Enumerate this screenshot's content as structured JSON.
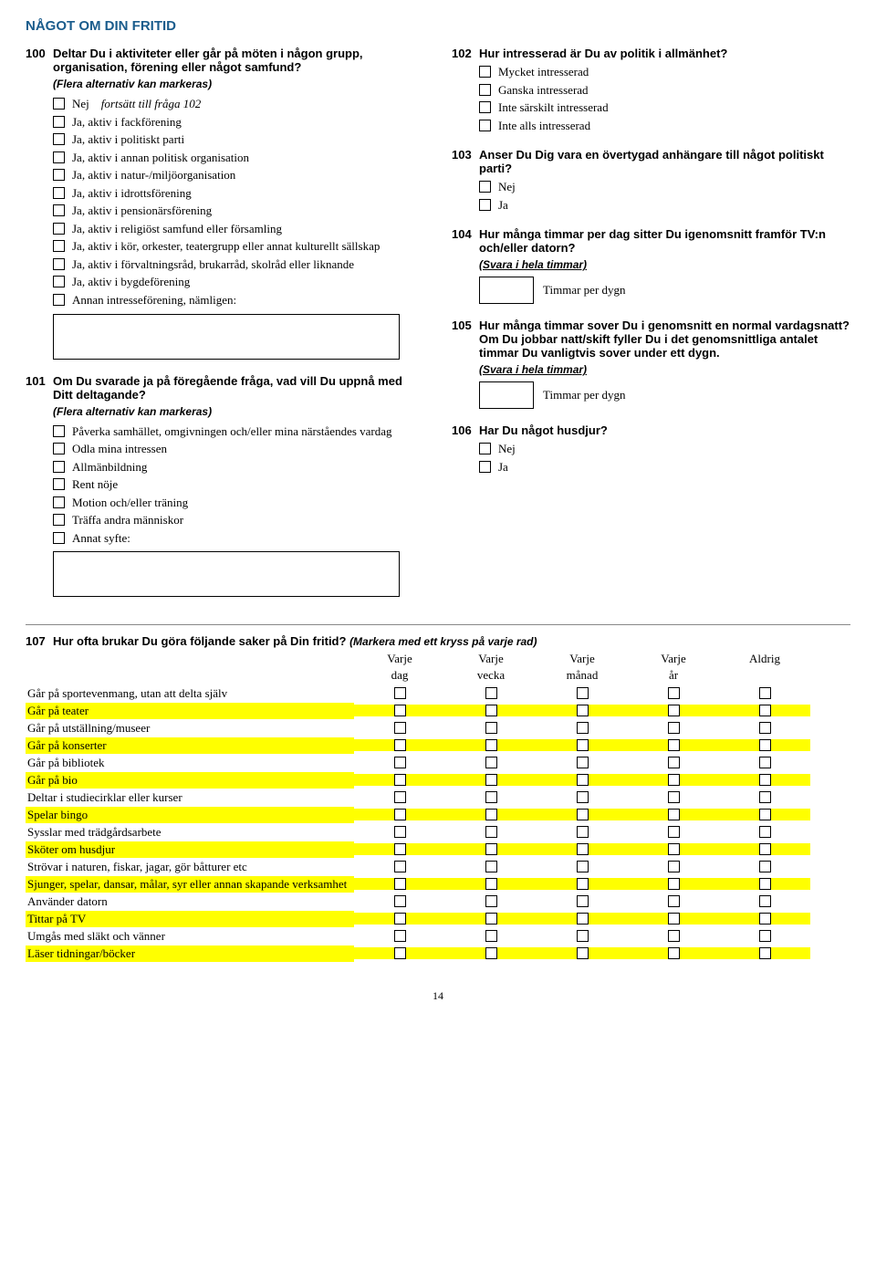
{
  "page_title": "NÅGOT OM DIN FRITID",
  "page_number": "14",
  "left": {
    "q100": {
      "num": "100",
      "text": "Deltar Du i aktiviteter eller går på möten i någon grupp, organisation, förening eller något samfund?",
      "sub": "(Flera alternativ kan markeras)",
      "opts": [
        {
          "label": "Nej",
          "suffix": "fortsätt till fråga 102"
        },
        {
          "label": "Ja, aktiv i fackförening"
        },
        {
          "label": "Ja, aktiv i politiskt parti"
        },
        {
          "label": "Ja, aktiv i annan politisk organisation"
        },
        {
          "label": "Ja, aktiv i natur-/miljöorganisation"
        },
        {
          "label": "Ja, aktiv i idrottsförening"
        },
        {
          "label": "Ja, aktiv i pensionärsförening"
        },
        {
          "label": "Ja, aktiv i religiöst samfund eller församling"
        },
        {
          "label": "Ja, aktiv i kör, orkester, teatergrupp eller annat kulturellt sällskap"
        },
        {
          "label": "Ja, aktiv i förvaltningsråd, brukarråd, skolråd eller liknande"
        },
        {
          "label": "Ja, aktiv i bygdeförening"
        },
        {
          "label": "Annan intresseförening, nämligen:"
        }
      ]
    },
    "q101": {
      "num": "101",
      "text": "Om Du svarade ja på föregående fråga, vad vill Du uppnå med Ditt deltagande?",
      "sub": "(Flera alternativ kan markeras)",
      "opts": [
        {
          "label": "Påverka samhället, omgivningen och/eller mina närståendes vardag"
        },
        {
          "label": "Odla mina intressen"
        },
        {
          "label": "Allmänbildning"
        },
        {
          "label": "Rent nöje"
        },
        {
          "label": "Motion och/eller träning"
        },
        {
          "label": "Träffa andra människor"
        },
        {
          "label": "Annat syfte:"
        }
      ]
    }
  },
  "right": {
    "q102": {
      "num": "102",
      "text": "Hur intresserad är Du av politik i allmänhet?",
      "opts": [
        {
          "label": "Mycket intresserad"
        },
        {
          "label": "Ganska intresserad"
        },
        {
          "label": "Inte särskilt intresserad"
        },
        {
          "label": "Inte alls intresserad"
        }
      ]
    },
    "q103": {
      "num": "103",
      "text": "Anser Du Dig vara en övertygad anhängare till något politiskt parti?",
      "opts": [
        {
          "label": "Nej"
        },
        {
          "label": "Ja"
        }
      ]
    },
    "q104": {
      "num": "104",
      "text": "Hur många timmar per dag sitter Du igenomsnitt framför TV:n och/eller datorn?",
      "sub": "(Svara i hela timmar)",
      "timer": "Timmar per dygn"
    },
    "q105": {
      "num": "105",
      "text": "Hur många timmar sover Du i genomsnitt en normal vardagsnatt?Om Du jobbar natt/skift fyller Du i det genomsnittliga antalet timmar Du vanligtvis sover under ett dygn.",
      "sub": "(Svara i hela timmar)",
      "timer": "Timmar per dygn"
    },
    "q106": {
      "num": "106",
      "text": "Har Du något husdjur?",
      "opts": [
        {
          "label": "Nej"
        },
        {
          "label": "Ja"
        }
      ]
    }
  },
  "q107": {
    "num": "107",
    "text": "Hur ofta brukar Du göra följande saker på Din fritid?",
    "hint": "(Markera med ett kryss på varje rad)",
    "cols_top": [
      "Varje",
      "Varje",
      "Varje",
      "Varje",
      "Aldrig"
    ],
    "cols_bot": [
      "dag",
      "vecka",
      "månad",
      "år",
      ""
    ],
    "rows": [
      {
        "label": "Går på sportevenmang, utan att delta själv",
        "hl": false
      },
      {
        "label": "Går på teater",
        "hl": true
      },
      {
        "label": "Går på utställning/museer",
        "hl": false
      },
      {
        "label": "Går på konserter",
        "hl": true
      },
      {
        "label": "Går på bibliotek",
        "hl": false
      },
      {
        "label": "Går på bio",
        "hl": true
      },
      {
        "label": "Deltar i studiecirklar eller kurser",
        "hl": false
      },
      {
        "label": "Spelar bingo",
        "hl": true
      },
      {
        "label": "Sysslar med trädgårdsarbete",
        "hl": false
      },
      {
        "label": "Sköter om husdjur",
        "hl": true
      },
      {
        "label": "Strövar i naturen, fiskar, jagar, gör båtturer etc",
        "hl": false
      },
      {
        "label": "Sjunger, spelar, dansar, målar, syr eller annan skapande verksamhet",
        "hl": true
      },
      {
        "label": "Använder datorn",
        "hl": false
      },
      {
        "label": "Tittar på TV",
        "hl": true
      },
      {
        "label": "Umgås med släkt och vänner",
        "hl": false
      },
      {
        "label": "Läser tidningar/böcker",
        "hl": true
      }
    ]
  }
}
